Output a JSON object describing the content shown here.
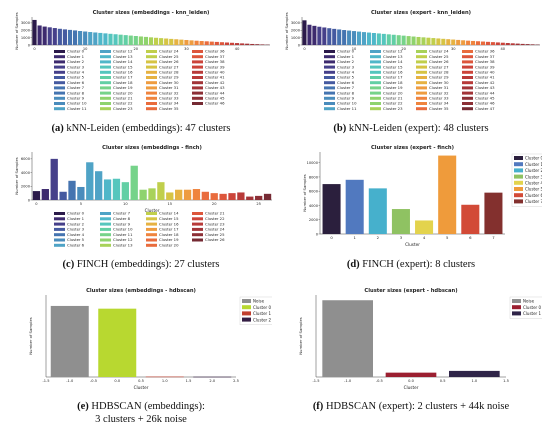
{
  "palette": [
    "#2b1a4a",
    "#3d2a6e",
    "#46408a",
    "#455aa0",
    "#4574b0",
    "#4a8cbc",
    "#4fa3c6",
    "#4fb7c9",
    "#55c6bd",
    "#62cfa5",
    "#76d38a",
    "#8fd36e",
    "#a8d25a",
    "#c0cf4c",
    "#d6c444",
    "#e6b242",
    "#ee9c40",
    "#ef843e",
    "#e96c3d",
    "#dd563c",
    "#cc443a",
    "#b83a39",
    "#a23438",
    "#8c2f36",
    "#752a33"
  ],
  "chart_data": [
    {
      "type": "bar",
      "title": "Cluster sizes (embeddings - knn_leiden)",
      "ylabel": "Number of Samples",
      "yticks": [
        "0",
        "1000",
        "2000",
        "3000"
      ],
      "xticks": [
        "0",
        "10",
        "20",
        "30",
        "40"
      ],
      "legend": [
        "Cluster 0",
        "Cluster 1",
        "Cluster 2",
        "Cluster 3",
        "Cluster 4",
        "Cluster 5",
        "Cluster 6",
        "Cluster 7",
        "Cluster 8",
        "Cluster 9",
        "Cluster 10",
        "Cluster 11",
        "Cluster 12",
        "Cluster 13",
        "Cluster 14",
        "Cluster 15",
        "Cluster 16",
        "Cluster 17",
        "Cluster 18",
        "Cluster 19",
        "Cluster 20",
        "Cluster 21",
        "Cluster 22",
        "Cluster 23",
        "Cluster 24",
        "Cluster 25",
        "Cluster 26",
        "Cluster 27",
        "Cluster 28",
        "Cluster 29",
        "Cluster 30",
        "Cluster 31",
        "Cluster 32",
        "Cluster 33",
        "Cluster 34",
        "Cluster 35",
        "Cluster 36",
        "Cluster 37",
        "Cluster 38",
        "Cluster 39",
        "Cluster 40",
        "Cluster 41",
        "Cluster 42",
        "Cluster 43",
        "Cluster 44",
        "Cluster 45",
        "Cluster 46"
      ],
      "ylim": [
        0,
        3800
      ],
      "values": [
        3400,
        2650,
        2500,
        2400,
        2300,
        2200,
        2120,
        2050,
        1980,
        1900,
        1830,
        1760,
        1700,
        1640,
        1580,
        1520,
        1460,
        1400,
        1340,
        1280,
        1220,
        1160,
        1100,
        1040,
        980,
        930,
        880,
        830,
        780,
        730,
        680,
        630,
        580,
        540,
        500,
        460,
        420,
        380,
        340,
        300,
        260,
        220,
        180,
        140,
        110,
        80,
        50
      ]
    },
    {
      "type": "bar",
      "title": "Cluster sizes (expert - knn_leiden)",
      "ylabel": "Number of Samples",
      "yticks": [
        "0",
        "1000",
        "2000",
        "3000"
      ],
      "xticks": [
        "0",
        "10",
        "20",
        "30",
        "40"
      ],
      "legend": [
        "Cluster 0",
        "Cluster 1",
        "Cluster 2",
        "Cluster 3",
        "Cluster 4",
        "Cluster 5",
        "Cluster 6",
        "Cluster 7",
        "Cluster 8",
        "Cluster 9",
        "Cluster 10",
        "Cluster 11",
        "Cluster 12",
        "Cluster 13",
        "Cluster 14",
        "Cluster 15",
        "Cluster 16",
        "Cluster 17",
        "Cluster 18",
        "Cluster 19",
        "Cluster 20",
        "Cluster 21",
        "Cluster 22",
        "Cluster 23",
        "Cluster 24",
        "Cluster 25",
        "Cluster 26",
        "Cluster 27",
        "Cluster 28",
        "Cluster 29",
        "Cluster 30",
        "Cluster 31",
        "Cluster 32",
        "Cluster 33",
        "Cluster 34",
        "Cluster 35",
        "Cluster 36",
        "Cluster 37",
        "Cluster 38",
        "Cluster 39",
        "Cluster 40",
        "Cluster 41",
        "Cluster 42",
        "Cluster 43",
        "Cluster 44",
        "Cluster 45",
        "Cluster 46",
        "Cluster 47"
      ],
      "ylim": [
        0,
        3800
      ],
      "values": [
        3350,
        2750,
        2600,
        2480,
        2380,
        2280,
        2190,
        2110,
        2030,
        1960,
        1890,
        1820,
        1750,
        1690,
        1630,
        1570,
        1510,
        1450,
        1390,
        1330,
        1270,
        1210,
        1150,
        1090,
        1040,
        990,
        940,
        890,
        840,
        790,
        740,
        690,
        640,
        590,
        550,
        510,
        470,
        430,
        390,
        350,
        310,
        270,
        230,
        190,
        150,
        120,
        90,
        60
      ]
    },
    {
      "type": "bar",
      "title": "Cluster sizes (embeddings - finch)",
      "ylabel": "Number of Samples",
      "xlabel": "Cluster",
      "yticks": [
        "0",
        "2000",
        "4000",
        "6000"
      ],
      "xticks": [
        "0",
        "5",
        "10",
        "15",
        "20",
        "25"
      ],
      "legend": [
        "Cluster 0",
        "Cluster 1",
        "Cluster 2",
        "Cluster 3",
        "Cluster 4",
        "Cluster 5",
        "Cluster 6",
        "Cluster 7",
        "Cluster 8",
        "Cluster 9",
        "Cluster 10",
        "Cluster 11",
        "Cluster 12",
        "Cluster 13",
        "Cluster 14",
        "Cluster 15",
        "Cluster 16",
        "Cluster 17",
        "Cluster 18",
        "Cluster 19",
        "Cluster 20",
        "Cluster 21",
        "Cluster 22",
        "Cluster 23",
        "Cluster 24",
        "Cluster 25",
        "Cluster 26"
      ],
      "ylim": [
        0,
        7000
      ],
      "values": [
        1300,
        1600,
        6000,
        1200,
        2800,
        1900,
        5500,
        4200,
        3000,
        3100,
        2600,
        5000,
        1500,
        1700,
        2600,
        1100,
        1500,
        1500,
        1600,
        1200,
        1000,
        900,
        1000,
        1100,
        500,
        600,
        900
      ]
    },
    {
      "type": "bar",
      "title": "Cluster sizes (expert - finch)",
      "ylabel": "Number of Samples",
      "xlabel": "Cluster",
      "yticks": [
        "0",
        "2000",
        "4000",
        "6000",
        "8000",
        "10000"
      ],
      "categories": [
        "0",
        "1",
        "2",
        "3",
        "4",
        "5",
        "6",
        "7"
      ],
      "legend": [
        "Cluster 0",
        "Cluster 1",
        "Cluster 2",
        "Cluster 3",
        "Cluster 4",
        "Cluster 5",
        "Cluster 6",
        "Cluster 7"
      ],
      "colors": [
        "#2b1f3d",
        "#5179bf",
        "#46b0cc",
        "#8fc262",
        "#e3d34d",
        "#ef9b3b",
        "#d24a37",
        "#83302e"
      ],
      "ylim": [
        0,
        11500
      ],
      "values": [
        7000,
        7600,
        6400,
        3500,
        1900,
        11000,
        4100,
        5800
      ]
    },
    {
      "type": "bar",
      "title": "Cluster sizes (embeddings - hdbscan)",
      "ylabel": "Number of Samples",
      "xlabel": "Cluster",
      "xticks": [
        "-1.5",
        "-1.0",
        "-0.5",
        "0.0",
        "0.5",
        "1.0",
        "1.5",
        "2.0",
        "2.5"
      ],
      "legend": [
        "Noise",
        "Cluster 0",
        "Cluster 1",
        "Cluster 2"
      ],
      "colors": [
        "#8f8f8f",
        "#b8d830",
        "#c2402f",
        "#341e44"
      ],
      "categories": [
        "-1",
        "0",
        "1",
        "2"
      ],
      "ylim": [
        0,
        30000
      ],
      "values": [
        26000,
        25000,
        150,
        100
      ]
    },
    {
      "type": "bar",
      "title": "Cluster sizes (expert - hdbscan)",
      "ylabel": "Number of Samples",
      "xlabel": "Cluster",
      "xticks": [
        "-1.5",
        "-1.0",
        "-0.5",
        "0.0",
        "0.5",
        "1.0",
        "1.5"
      ],
      "legend": [
        "Noise",
        "Cluster 0",
        "Cluster 1"
      ],
      "colors": [
        "#8f8f8f",
        "#9b1f30",
        "#2f2448"
      ],
      "categories": [
        "-1",
        "0",
        "1"
      ],
      "ylim": [
        0,
        47000
      ],
      "values": [
        44000,
        2500,
        3500
      ]
    }
  ],
  "captions": [
    {
      "label": "(a)",
      "text": " kNN-Leiden (embeddings): 47 clusters"
    },
    {
      "label": "(b)",
      "text": " kNN-Leiden (expert): 48 clusters"
    },
    {
      "label": "(c)",
      "text": " FINCH (embeddings): 27 clusters"
    },
    {
      "label": "(d)",
      "text": " FINCH (expert): 8 clusters"
    },
    {
      "label": "(e)",
      "text": " HDBSCAN (embeddings):",
      "text2": "3 clusters + 26k noise"
    },
    {
      "label": "(f)",
      "text": " HDBSCAN (expert): 2 clusters + 44k noise"
    }
  ]
}
